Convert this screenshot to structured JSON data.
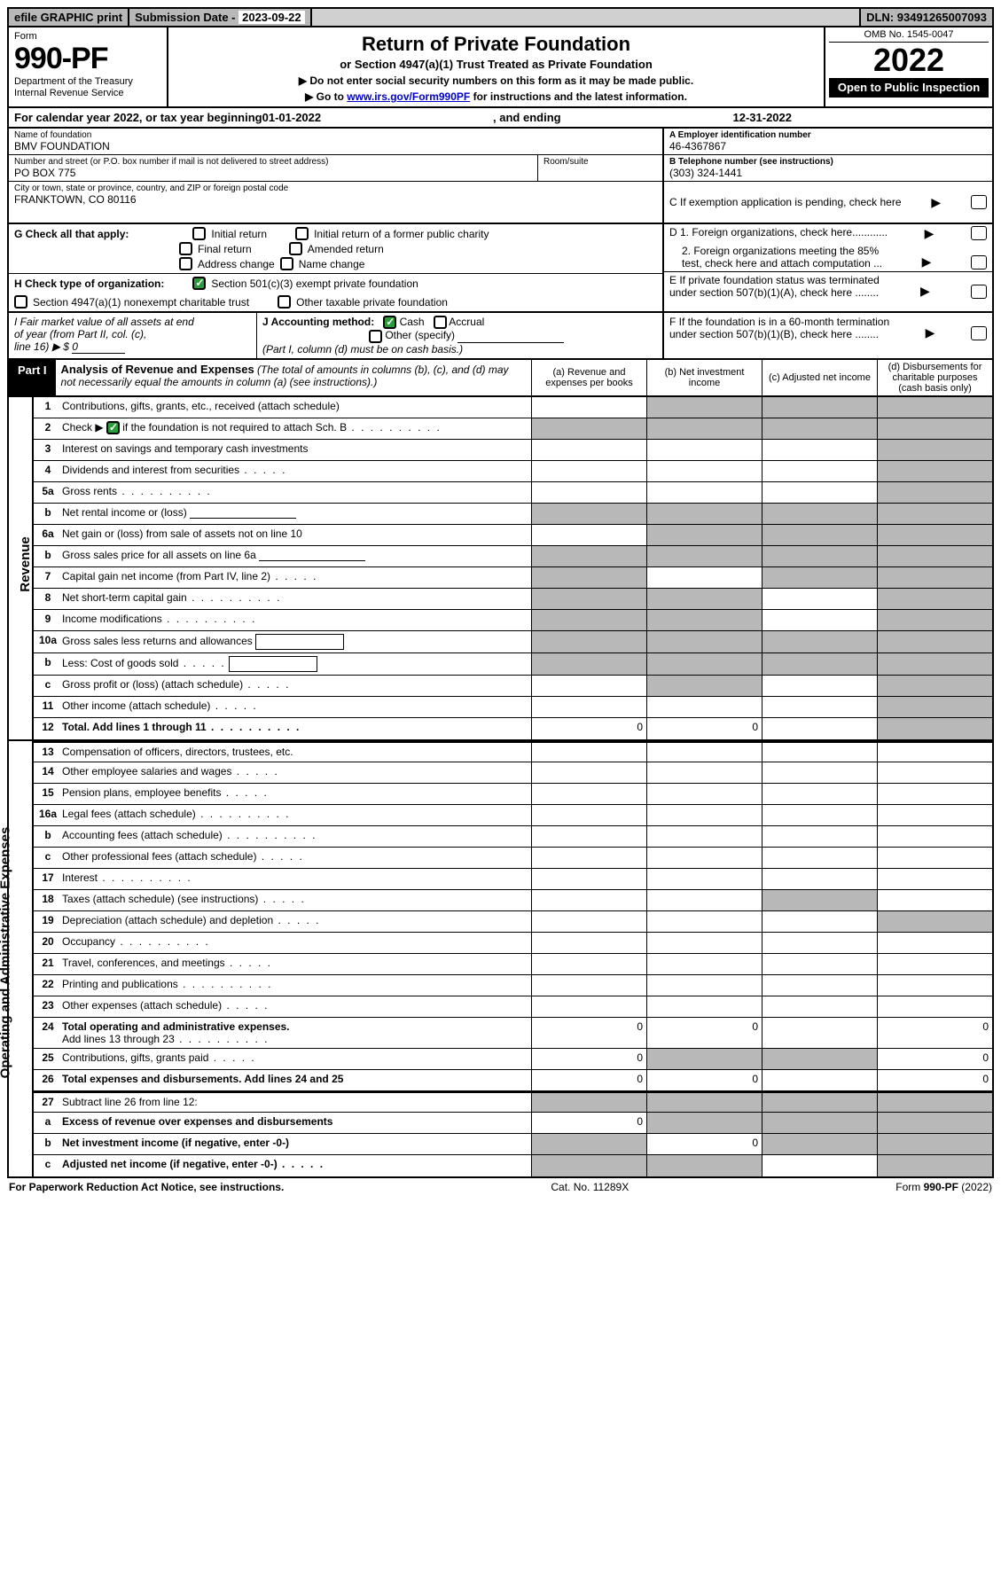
{
  "colors": {
    "gray": "#b8b8b8",
    "green_check": "#2a9d3a",
    "link": "#0000cc"
  },
  "topbar": {
    "efile": "efile GRAPHIC print",
    "sub_label": "Submission Date - ",
    "sub_date": "2023-09-22",
    "dln_label": "DLN: ",
    "dln": "93491265007093"
  },
  "header": {
    "form_word": "Form",
    "form_no": "990-PF",
    "dept": "Department of the Treasury",
    "irs": "Internal Revenue Service",
    "title": "Return of Private Foundation",
    "subtitle": "or Section 4947(a)(1) Trust Treated as Private Foundation",
    "note1": "▶ Do not enter social security numbers on this form as it may be made public.",
    "note2_pre": "▶ Go to ",
    "note2_link": "www.irs.gov/Form990PF",
    "note2_post": " for instructions and the latest information.",
    "omb": "OMB No. 1545-0047",
    "year": "2022",
    "open": "Open to Public Inspection"
  },
  "calyear": {
    "pre": "For calendar year 2022, or tax year beginning ",
    "begin": "01-01-2022",
    "mid": ", and ending ",
    "end": "12-31-2022"
  },
  "name": {
    "lbl": "Name of foundation",
    "val": "BMV FOUNDATION"
  },
  "addr": {
    "lbl": "Number and street (or P.O. box number if mail is not delivered to street address)",
    "val": "PO BOX 775",
    "room_lbl": "Room/suite"
  },
  "city": {
    "lbl": "City or town, state or province, country, and ZIP or foreign postal code",
    "val": "FRANKTOWN, CO  80116"
  },
  "ein": {
    "lbl": "A Employer identification number",
    "val": "46-4367867"
  },
  "tel": {
    "lbl": "B Telephone number (see instructions)",
    "val": "(303) 324-1441"
  },
  "pending": "C  If exemption application is pending, check here",
  "g": {
    "label": "G Check all that apply:",
    "opts": [
      "Initial return",
      "Initial return of a former public charity",
      "Final return",
      "Amended return",
      "Address change",
      "Name change"
    ]
  },
  "h": {
    "label": "H Check type of organization:",
    "o1": "Section 501(c)(3) exempt private foundation",
    "o2": "Section 4947(a)(1) nonexempt charitable trust",
    "o3": "Other taxable private foundation"
  },
  "d": {
    "d1": "D 1. Foreign organizations, check here............",
    "d2a": "2. Foreign organizations meeting the 85%",
    "d2b": "test, check here and attach computation ...",
    "e1": "E  If private foundation status was terminated",
    "e2": "under section 507(b)(1)(A), check here ........",
    "f1": "F  If the foundation is in a 60-month termination",
    "f2": "under section 507(b)(1)(B), check here ........"
  },
  "i": {
    "line1": "I Fair market value of all assets at end",
    "line2": "of year (from Part II, col. (c),",
    "line3_pre": "line 16) ▶ $ ",
    "val": "0"
  },
  "j": {
    "label": "J Accounting method:",
    "cash": "Cash",
    "accrual": "Accrual",
    "other": "Other (specify)",
    "note": "(Part I, column (d) must be on cash basis.)"
  },
  "part1": {
    "lbl": "Part I",
    "title": "Analysis of Revenue and Expenses",
    "note": " (The total of amounts in columns (b), (c), and (d) may not necessarily equal the amounts in column (a) (see instructions).)",
    "col_a": "(a)   Revenue and expenses per books",
    "col_b": "(b)   Net investment income",
    "col_c": "(c)   Adjusted net income",
    "col_d": "(d)   Disbursements for charitable purposes (cash basis only)"
  },
  "side": {
    "revenue": "Revenue",
    "expenses": "Operating and Administrative Expenses"
  },
  "rows": {
    "r1": "Contributions, gifts, grants, etc., received (attach schedule)",
    "r2_pre": "Check ▶ ",
    "r2_post": " if the foundation is not required to attach Sch. B",
    "r3": "Interest on savings and temporary cash investments",
    "r4": "Dividends and interest from securities",
    "r5a": "Gross rents",
    "r5b": "Net rental income or (loss)",
    "r6a": "Net gain or (loss) from sale of assets not on line 10",
    "r6b": "Gross sales price for all assets on line 6a",
    "r7": "Capital gain net income (from Part IV, line 2)",
    "r8": "Net short-term capital gain",
    "r9": "Income modifications",
    "r10a": "Gross sales less returns and allowances",
    "r10b": "Less: Cost of goods sold",
    "r10c": "Gross profit or (loss) (attach schedule)",
    "r11": "Other income (attach schedule)",
    "r12": "Total. Add lines 1 through 11",
    "r13": "Compensation of officers, directors, trustees, etc.",
    "r14": "Other employee salaries and wages",
    "r15": "Pension plans, employee benefits",
    "r16a": "Legal fees (attach schedule)",
    "r16b": "Accounting fees (attach schedule)",
    "r16c": "Other professional fees (attach schedule)",
    "r17": "Interest",
    "r18": "Taxes (attach schedule) (see instructions)",
    "r19": "Depreciation (attach schedule) and depletion",
    "r20": "Occupancy",
    "r21": "Travel, conferences, and meetings",
    "r22": "Printing and publications",
    "r23": "Other expenses (attach schedule)",
    "r24a": "Total operating and administrative expenses.",
    "r24b": "Add lines 13 through 23",
    "r25": "Contributions, gifts, grants paid",
    "r26": "Total expenses and disbursements. Add lines 24 and 25",
    "r27": "Subtract line 26 from line 12:",
    "r27a": "Excess of revenue over expenses and disbursements",
    "r27b": "Net investment income (if negative, enter -0-)",
    "r27c": "Adjusted net income (if negative, enter -0-)"
  },
  "vals": {
    "r12a": "0",
    "r12b": "0",
    "r24a": "0",
    "r24b": "0",
    "r24d": "0",
    "r25a": "0",
    "r25d": "0",
    "r26a": "0",
    "r26b": "0",
    "r26d": "0",
    "r27aa": "0",
    "r27bb": "0"
  },
  "footer": {
    "left": "For Paperwork Reduction Act Notice, see instructions.",
    "mid": "Cat. No. 11289X",
    "right_pre": "Form ",
    "right_form": "990-PF",
    "right_post": " (2022)"
  }
}
